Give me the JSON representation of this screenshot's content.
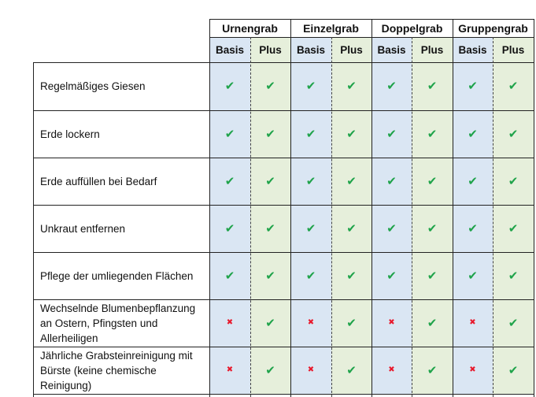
{
  "table": {
    "graves": [
      "Urnengrab",
      "Einzelgrab",
      "Doppelgrab",
      "Gruppengrab"
    ],
    "packages": [
      "Basis",
      "Plus"
    ],
    "rows": [
      {
        "label": "Regelmäßiges Giesen",
        "marks": [
          1,
          1,
          1,
          1,
          1,
          1,
          1,
          1
        ]
      },
      {
        "label": "Erde lockern",
        "marks": [
          1,
          1,
          1,
          1,
          1,
          1,
          1,
          1
        ]
      },
      {
        "label": "Erde auffüllen bei Bedarf",
        "marks": [
          1,
          1,
          1,
          1,
          1,
          1,
          1,
          1
        ]
      },
      {
        "label": "Unkraut entfernen",
        "marks": [
          1,
          1,
          1,
          1,
          1,
          1,
          1,
          1
        ]
      },
      {
        "label": "Pflege der umliegenden Flächen",
        "marks": [
          1,
          1,
          1,
          1,
          1,
          1,
          1,
          1
        ]
      },
      {
        "label": "Wechselnde Blumenbepflanzung an Ostern, Pfingsten und Allerheiligen",
        "marks": [
          0,
          1,
          0,
          1,
          0,
          1,
          0,
          1
        ]
      },
      {
        "label": "Jährliche Grabsteinreinigung mit Bürste (keine chemische Reinigung)",
        "marks": [
          0,
          1,
          0,
          1,
          0,
          1,
          0,
          1
        ]
      }
    ],
    "symbols": {
      "yes": "✔",
      "no": "✖"
    },
    "colors": {
      "basis_bg": "#dae6f3",
      "plus_bg": "#e6efdb",
      "check": "#1fa34a",
      "cross": "#e8192c"
    }
  }
}
